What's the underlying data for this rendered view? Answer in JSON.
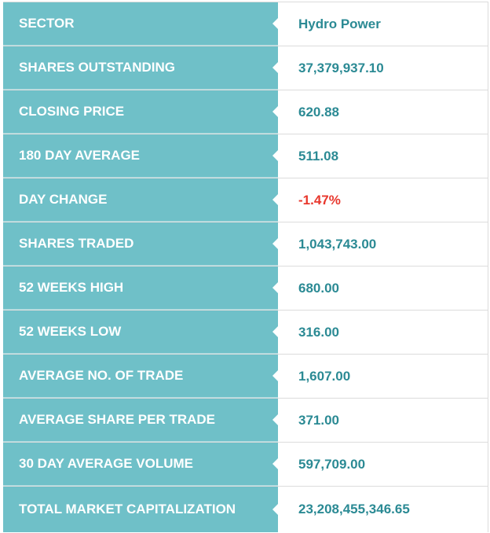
{
  "stats": [
    {
      "label": "SECTOR",
      "value": "Hydro Power"
    },
    {
      "label": "SHARES OUTSTANDING",
      "value": "37,379,937.10"
    },
    {
      "label": "CLOSING PRICE",
      "value": "620.88"
    },
    {
      "label": "180 DAY AVERAGE",
      "value": "511.08"
    },
    {
      "label": "DAY CHANGE",
      "value": "-1.47%"
    },
    {
      "label": "SHARES TRADED",
      "value": "1,043,743.00"
    },
    {
      "label": "52 WEEKS HIGH",
      "value": "680.00"
    },
    {
      "label": "52 WEEKS LOW",
      "value": "316.00"
    },
    {
      "label": "AVERAGE NO. OF TRADE",
      "value": "1,607.00"
    },
    {
      "label": "AVERAGE SHARE PER TRADE",
      "value": "371.00"
    },
    {
      "label": "30 DAY AVERAGE VOLUME",
      "value": "597,709.00"
    },
    {
      "label": "TOTAL MARKET CAPITALIZATION",
      "value": "23,208,455,346.65"
    }
  ],
  "colors": {
    "label_bg": "#6fc0c8",
    "label_text": "#ffffff",
    "value_text": "#2b8a94",
    "negative_text": "#e8382e"
  }
}
